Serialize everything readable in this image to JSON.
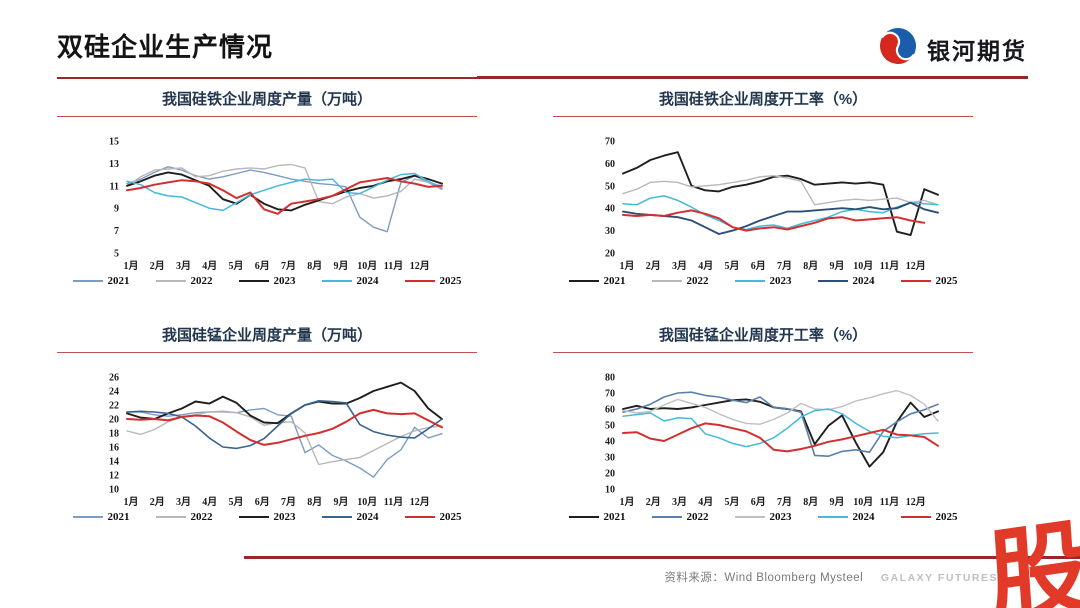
{
  "header": {
    "title": "双硅企业生产情况",
    "logo_text": "银河期货",
    "accent_color": "#9c2626"
  },
  "footer": {
    "source_label": "资料来源：Wind Bloomberg Mysteel",
    "brand_text": "GALAXY FUTURES",
    "watermark_char": "股"
  },
  "chart_data": [
    {
      "type": "line",
      "title": "我国硅铁企业周度产量（万吨）",
      "ylabel": "",
      "xlabel": "",
      "ylim": [
        5,
        15
      ],
      "yticks": [
        15,
        13,
        11,
        9,
        7,
        5
      ],
      "xticks": [
        "1月",
        "2月",
        "3月",
        "4月",
        "5月",
        "6月",
        "7月",
        "8月",
        "9月",
        "10月",
        "11月",
        "12月"
      ],
      "grid": false,
      "legend_position": "bottom",
      "series": [
        {
          "name": "2021",
          "color": "#7d9cc4",
          "width": 1.4,
          "values": [
            11.2,
            11.6,
            12.2,
            12.7,
            12.4,
            11.9,
            11.6,
            11.8,
            12.1,
            12.4,
            12.2,
            11.9,
            11.6,
            11.4,
            11.2,
            11.1,
            10.9,
            8.2,
            7.3,
            6.9,
            11.3,
            11.9,
            11.3,
            10.7
          ]
        },
        {
          "name": "2022",
          "color": "#b8b8b8",
          "width": 1.4,
          "values": [
            11.0,
            11.8,
            12.4,
            12.5,
            12.6,
            11.8,
            11.9,
            12.3,
            12.5,
            12.6,
            12.5,
            12.8,
            12.9,
            12.6,
            9.6,
            9.4,
            10.0,
            10.3,
            9.9,
            10.1,
            10.5,
            11.6,
            11.3,
            11.0
          ]
        },
        {
          "name": "2023",
          "color": "#1f1f1f",
          "width": 1.9,
          "values": [
            11.0,
            11.4,
            11.9,
            12.2,
            12.0,
            11.5,
            11.0,
            9.8,
            9.4,
            10.2,
            9.4,
            8.9,
            8.8,
            9.3,
            9.7,
            10.1,
            10.5,
            10.8,
            11.0,
            11.4,
            11.6,
            11.9,
            11.6,
            11.2
          ]
        },
        {
          "name": "2024",
          "color": "#45b9dc",
          "width": 1.5,
          "values": [
            11.4,
            11.1,
            10.4,
            10.1,
            10.0,
            9.5,
            9.0,
            8.8,
            9.5,
            10.2,
            10.6,
            11.0,
            11.3,
            11.6,
            11.5,
            11.6,
            10.4,
            10.3,
            10.9,
            11.5,
            12.0,
            12.1,
            11.4,
            10.8
          ]
        },
        {
          "name": "2025",
          "color": "#d23030",
          "width": 2.0,
          "values": [
            10.6,
            10.8,
            11.1,
            11.3,
            11.5,
            11.4,
            11.2,
            10.6,
            9.9,
            10.4,
            8.9,
            8.5,
            9.4,
            9.6,
            9.8,
            10.1,
            10.7,
            11.3,
            11.5,
            11.7,
            11.4,
            11.2,
            10.9,
            11.0
          ]
        }
      ]
    },
    {
      "type": "line",
      "title": "我国硅铁企业周度开工率（%）",
      "ylabel": "",
      "xlabel": "",
      "ylim": [
        20,
        70
      ],
      "yticks": [
        70,
        60,
        50,
        40,
        30,
        20
      ],
      "xticks": [
        "1月",
        "2月",
        "3月",
        "4月",
        "5月",
        "6月",
        "7月",
        "8月",
        "9月",
        "10月",
        "11月",
        "12月"
      ],
      "grid": false,
      "legend_position": "bottom",
      "series": [
        {
          "name": "2021",
          "color": "#1f1f1f",
          "width": 1.9,
          "values": [
            55.5,
            58,
            61.5,
            63.5,
            65,
            50,
            48,
            47.5,
            49.5,
            50.5,
            52,
            54,
            54.5,
            53,
            50.5,
            51,
            51.5,
            51,
            51.5,
            50.5,
            29.5,
            28,
            48.5,
            46
          ]
        },
        {
          "name": "2022",
          "color": "#b8b8b8",
          "width": 1.4,
          "values": [
            46.5,
            48.5,
            51.5,
            52,
            51.5,
            49.5,
            50,
            50.5,
            51.5,
            52.5,
            54,
            54.5,
            53.5,
            52,
            41.5,
            42.5,
            43.5,
            44,
            43.5,
            44,
            44.5,
            42.5,
            43.5,
            41.5
          ]
        },
        {
          "name": "2023",
          "color": "#45b9dc",
          "width": 1.5,
          "values": [
            42,
            41.5,
            44.5,
            45.5,
            43.5,
            40.5,
            37,
            34.5,
            31.5,
            30.5,
            32,
            32.5,
            31,
            33,
            34.5,
            36,
            38.5,
            39.5,
            38.5,
            38,
            40.5,
            42.5,
            42,
            41.5
          ]
        },
        {
          "name": "2024",
          "color": "#2d4f74",
          "width": 1.9,
          "values": [
            38.5,
            37.5,
            37,
            36.5,
            36,
            34.5,
            31.5,
            28.5,
            30,
            32,
            34.5,
            36.5,
            38.5,
            38.5,
            39,
            39.5,
            40,
            39.5,
            40.5,
            39.5,
            40,
            42.5,
            39.5,
            38
          ]
        },
        {
          "name": "2025",
          "color": "#d23030",
          "width": 2.0,
          "values": [
            37,
            36.5,
            37,
            36.5,
            38,
            39,
            37.5,
            35.5,
            31.5,
            30,
            31,
            31.5,
            30.5,
            32,
            33.5,
            35.5,
            36,
            34.5,
            35,
            35.5,
            36,
            34.5,
            33.5
          ]
        }
      ]
    },
    {
      "type": "line",
      "title": "我国硅锰企业周度产量（万吨）",
      "ylabel": "",
      "xlabel": "",
      "ylim": [
        10,
        26
      ],
      "yticks": [
        26,
        24,
        22,
        20,
        18,
        16,
        14,
        12,
        10
      ],
      "xticks": [
        "1月",
        "2月",
        "3月",
        "4月",
        "5月",
        "6月",
        "7月",
        "8月",
        "9月",
        "10月",
        "11月",
        "12月"
      ],
      "grid": false,
      "legend_position": "bottom",
      "series": [
        {
          "name": "2021",
          "color": "#7d9cc4",
          "width": 1.4,
          "values": [
            21.0,
            21.0,
            20.6,
            20.4,
            20.6,
            20.9,
            21.0,
            21.1,
            20.9,
            21.3,
            21.5,
            20.6,
            20.4,
            15.2,
            16.3,
            14.8,
            14.0,
            13.0,
            11.7,
            14.2,
            15.6,
            18.8,
            17.3,
            17.9
          ]
        },
        {
          "name": "2022",
          "color": "#b8b8b8",
          "width": 1.4,
          "values": [
            18.3,
            17.8,
            18.5,
            19.6,
            20.3,
            20.6,
            21.0,
            21.0,
            20.9,
            20.3,
            19.1,
            19.5,
            19.6,
            18.0,
            13.5,
            13.9,
            14.2,
            14.5,
            15.5,
            16.5,
            17.5,
            18.3,
            18.8,
            19.0
          ]
        },
        {
          "name": "2023",
          "color": "#1f1f1f",
          "width": 1.9,
          "values": [
            20.8,
            20.2,
            20.0,
            20.8,
            21.5,
            22.5,
            22.2,
            23.2,
            22.3,
            20.5,
            19.5,
            19.4,
            20.8,
            22.0,
            22.5,
            22.2,
            22.2,
            23.0,
            24.0,
            24.6,
            25.2,
            24.0,
            21.5,
            20.0
          ]
        },
        {
          "name": "2024",
          "color": "#3a6390",
          "width": 1.6,
          "values": [
            21.0,
            21.1,
            21.0,
            20.8,
            20.3,
            19.0,
            17.3,
            16.0,
            15.8,
            16.2,
            17.2,
            19.0,
            20.8,
            22.0,
            22.6,
            22.5,
            22.3,
            19.2,
            18.2,
            17.7,
            17.4,
            17.3,
            18.6,
            20.0
          ]
        },
        {
          "name": "2025",
          "color": "#d23030",
          "width": 2.0,
          "values": [
            20.0,
            19.9,
            20.0,
            19.8,
            20.3,
            20.5,
            20.4,
            19.5,
            18.2,
            17.0,
            16.3,
            16.6,
            17.1,
            17.6,
            18.0,
            18.6,
            19.6,
            20.8,
            21.3,
            20.8,
            20.7,
            20.8,
            19.8,
            18.8
          ]
        }
      ]
    },
    {
      "type": "line",
      "title": "我国硅锰企业周度开工率（%）",
      "ylabel": "",
      "xlabel": "",
      "ylim": [
        10,
        80
      ],
      "yticks": [
        80,
        70,
        60,
        50,
        40,
        30,
        20,
        10
      ],
      "xticks": [
        "1月",
        "2月",
        "3月",
        "4月",
        "5月",
        "6月",
        "7月",
        "8月",
        "9月",
        "10月",
        "11月",
        "12月"
      ],
      "grid": false,
      "legend_position": "bottom",
      "series": [
        {
          "name": "2021",
          "color": "#1f1f1f",
          "width": 1.9,
          "values": [
            60,
            62,
            60,
            60.5,
            60,
            61,
            62.5,
            64,
            65.5,
            66,
            64.5,
            61,
            60,
            58.5,
            38,
            49.5,
            56,
            39,
            24,
            33,
            52,
            64,
            55,
            58.5
          ]
        },
        {
          "name": "2022",
          "color": "#5b7fad",
          "width": 1.6,
          "values": [
            58,
            60,
            63,
            67.5,
            70,
            70.5,
            68.5,
            67.5,
            65.5,
            64,
            67.5,
            61,
            60,
            58,
            31,
            30.5,
            33.5,
            34.5,
            33,
            46,
            52,
            57,
            59.5,
            63
          ]
        },
        {
          "name": "2023",
          "color": "#bfbfbf",
          "width": 1.4,
          "values": [
            59,
            57.5,
            58.5,
            62.5,
            66,
            63.5,
            61,
            57,
            53.5,
            51,
            50.5,
            53.5,
            57.5,
            63.5,
            60,
            59.5,
            61.5,
            65,
            67,
            69.5,
            71.5,
            68.5,
            63,
            52.5
          ]
        },
        {
          "name": "2024",
          "color": "#45b9dc",
          "width": 1.5,
          "values": [
            55.5,
            56.5,
            57.5,
            52.5,
            54.5,
            54,
            44.5,
            42,
            38.5,
            36.5,
            38.5,
            42,
            48,
            55,
            59,
            60,
            57,
            51,
            46,
            43,
            42,
            43.5,
            44.5,
            45
          ]
        },
        {
          "name": "2025",
          "color": "#d23030",
          "width": 2.0,
          "values": [
            45,
            45.5,
            41.5,
            40,
            44,
            48,
            51,
            50,
            48,
            46,
            42,
            34.5,
            33.5,
            35,
            37,
            39.5,
            41,
            43,
            45,
            47,
            44,
            43.5,
            42.5,
            37
          ]
        }
      ]
    }
  ]
}
